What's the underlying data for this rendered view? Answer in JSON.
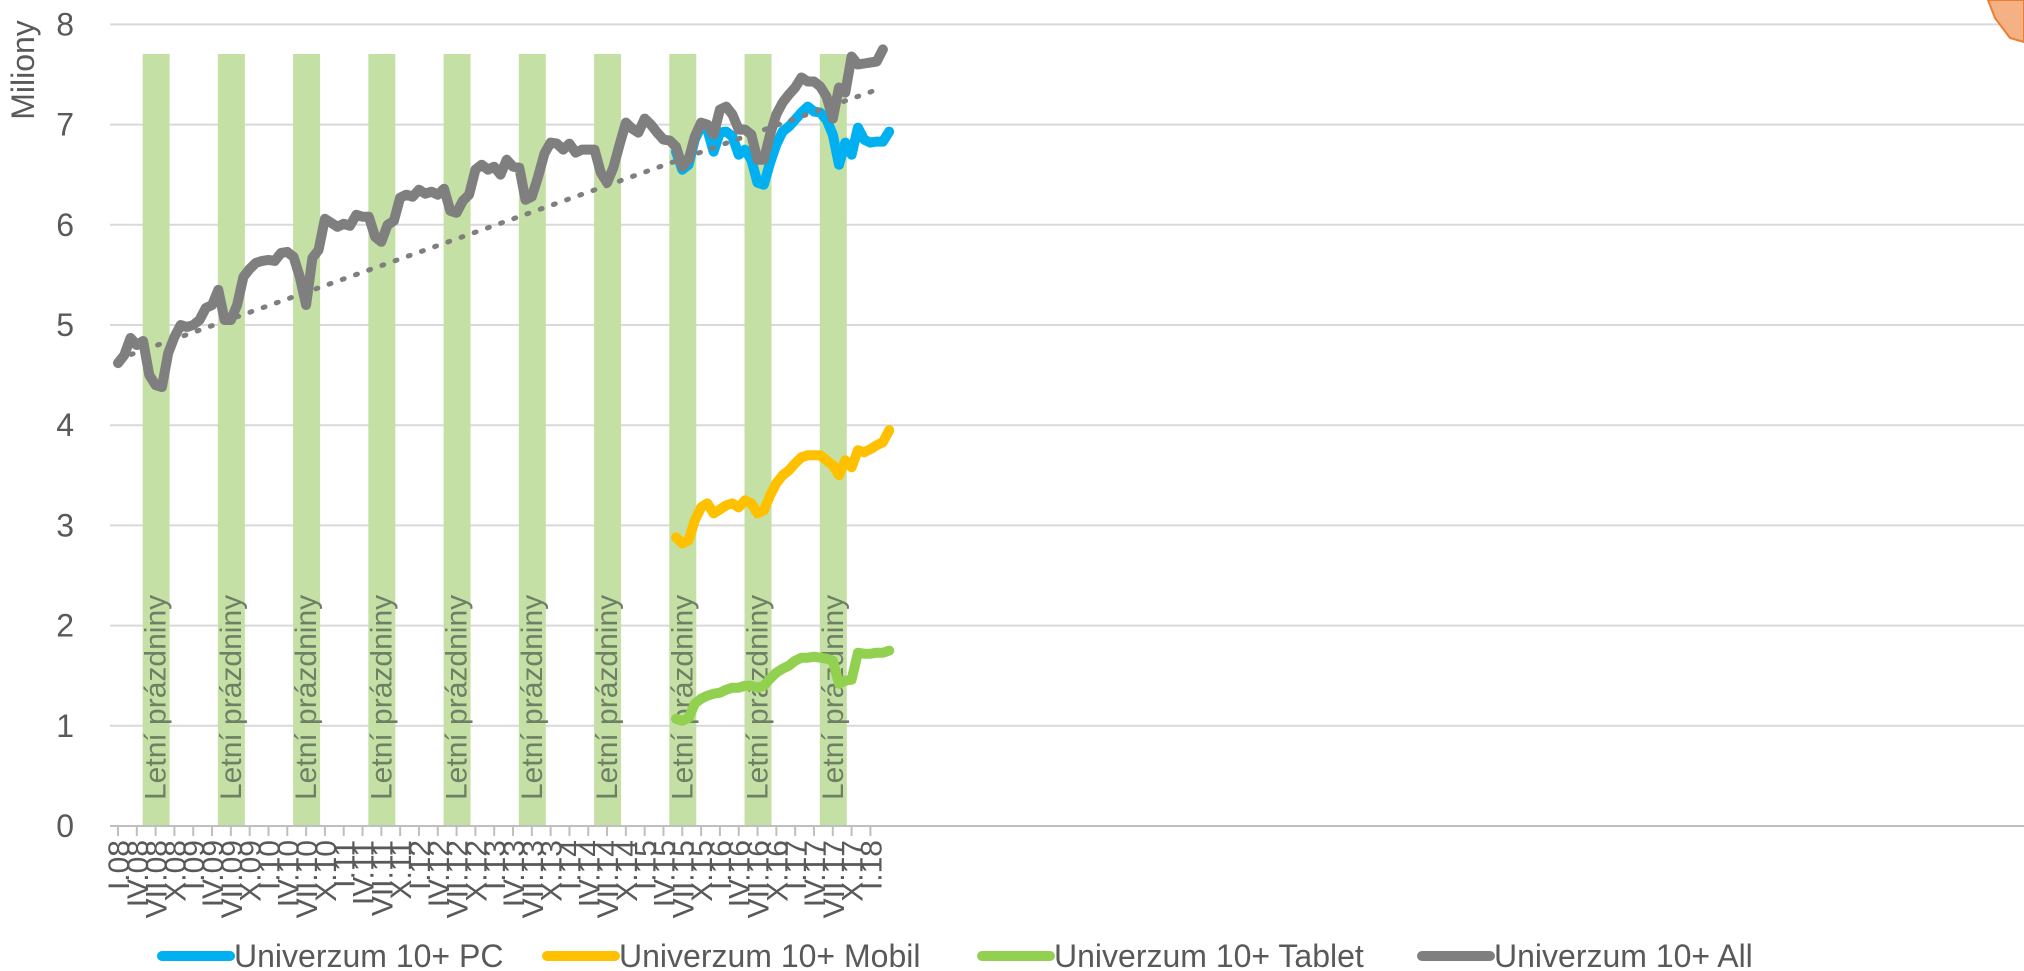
{
  "chart_data": {
    "type": "line",
    "ylabel": "Miliony",
    "xlabel": "",
    "title": "",
    "ylim": [
      0,
      8
    ],
    "yticks": [
      0,
      1,
      2,
      3,
      4,
      5,
      6,
      7,
      8
    ],
    "grid": true,
    "legend_position": "bottom",
    "x_tick_labels": [
      "I.08",
      "IV.08",
      "VII.08",
      "X.08",
      "I.09",
      "IV.09",
      "VII.09",
      "X.09",
      "I.10",
      "IV.10",
      "VII.10",
      "X.10",
      "I.11",
      "IV.11",
      "VII.11",
      "X.11",
      "I.12",
      "IV.12",
      "VII.12",
      "X.12",
      "I.13",
      "IV.13",
      "VII.13",
      "X.13",
      "I.14",
      "IV.14",
      "VII.14",
      "X.14",
      "I.15",
      "IV.15",
      "VII.15",
      "X.15",
      "I.16",
      "IV.16",
      "VII.16",
      "X.16",
      "I.17",
      "IV.17",
      "VII.17",
      "X.17",
      "I.18"
    ],
    "summer_band_label": "Letní prázdniny",
    "summer_bands": [
      "VII.08",
      "VII.09",
      "VII.10",
      "VII.11",
      "VII.12",
      "VII.13",
      "VII.14",
      "VII.15",
      "VII.16",
      "VII.17"
    ],
    "series": [
      {
        "name": "Univerzum 10+ All",
        "color": "#7f7f7f",
        "start": "I.08",
        "values": [
          4.62,
          4.7,
          4.87,
          4.8,
          4.84,
          4.5,
          4.4,
          4.38,
          4.72,
          4.88,
          5.0,
          4.98,
          5.0,
          5.05,
          5.17,
          5.2,
          5.35,
          5.05,
          5.05,
          5.2,
          5.48,
          5.56,
          5.62,
          5.64,
          5.65,
          5.64,
          5.72,
          5.73,
          5.68,
          5.48,
          5.2,
          5.67,
          5.75,
          6.06,
          6.02,
          5.98,
          6.01,
          5.99,
          6.1,
          6.08,
          6.08,
          5.88,
          5.83,
          6.0,
          6.04,
          6.27,
          6.3,
          6.28,
          6.35,
          6.31,
          6.33,
          6.3,
          6.36,
          6.14,
          6.12,
          6.24,
          6.3,
          6.55,
          6.6,
          6.55,
          6.58,
          6.5,
          6.65,
          6.58,
          6.57,
          6.25,
          6.28,
          6.48,
          6.71,
          6.82,
          6.81,
          6.75,
          6.81,
          6.72,
          6.75,
          6.75,
          6.75,
          6.52,
          6.42,
          6.57,
          6.8,
          7.02,
          6.96,
          6.92,
          7.06,
          7.0,
          6.92,
          6.85,
          6.84,
          6.78,
          6.58,
          6.65,
          6.88,
          7.02,
          7.0,
          6.9,
          7.15,
          7.18,
          7.1,
          6.95,
          6.95,
          6.9,
          6.65,
          6.65,
          6.9,
          7.1,
          7.22,
          7.3,
          7.37,
          7.47,
          7.43,
          7.43,
          7.38,
          7.28,
          7.06,
          7.37,
          7.32,
          7.68,
          7.6,
          7.61,
          7.62,
          7.63,
          7.75
        ]
      },
      {
        "name": "Univerzum 10+ PC",
        "color": "#00b0f0",
        "start": "VI.15",
        "values": [
          6.73,
          6.55,
          6.6,
          6.85,
          6.98,
          6.95,
          6.73,
          6.92,
          6.93,
          6.88,
          6.7,
          6.75,
          6.65,
          6.42,
          6.4,
          6.62,
          6.8,
          6.93,
          6.98,
          7.05,
          7.12,
          7.18,
          7.13,
          7.12,
          7.05,
          6.9,
          6.6,
          6.82,
          6.7,
          6.97,
          6.85,
          6.82,
          6.83,
          6.83,
          6.93
        ]
      },
      {
        "name": "Univerzum 10+ Mobil",
        "color": "#ffc000",
        "start": "VI.15",
        "values": [
          2.88,
          2.82,
          2.85,
          3.05,
          3.18,
          3.22,
          3.12,
          3.16,
          3.2,
          3.22,
          3.18,
          3.25,
          3.22,
          3.12,
          3.15,
          3.3,
          3.42,
          3.5,
          3.55,
          3.62,
          3.68,
          3.7,
          3.7,
          3.7,
          3.65,
          3.6,
          3.5,
          3.65,
          3.58,
          3.75,
          3.73,
          3.76,
          3.8,
          3.83,
          3.95
        ]
      },
      {
        "name": "Univerzum 10+ Tablet",
        "color": "#92d050",
        "start": "VI.15",
        "values": [
          1.07,
          1.05,
          1.08,
          1.22,
          1.27,
          1.3,
          1.32,
          1.33,
          1.36,
          1.38,
          1.38,
          1.4,
          1.4,
          1.38,
          1.4,
          1.47,
          1.53,
          1.57,
          1.6,
          1.65,
          1.68,
          1.68,
          1.69,
          1.68,
          1.67,
          1.65,
          1.42,
          1.45,
          1.46,
          1.73,
          1.72,
          1.72,
          1.73,
          1.73,
          1.75
        ]
      },
      {
        "name": "trend",
        "color": "#7f7f7f",
        "dashed": true,
        "start": "I.08",
        "from_value": 4.66,
        "to_value": 7.37
      }
    ]
  }
}
